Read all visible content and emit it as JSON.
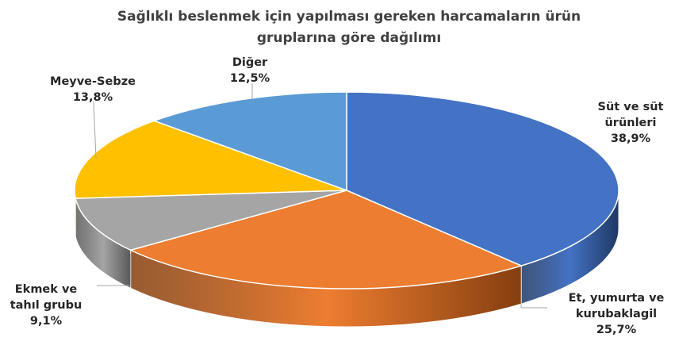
{
  "chart_data": {
    "type": "pie",
    "title_lines": [
      "Sağlıklı beslenmek için yapılması gereken harcamaların ürün",
      "gruplarına göre dağılımı"
    ],
    "slices": [
      {
        "label_lines": [
          "Süt ve süt",
          "ürünleri"
        ],
        "value": 38.9,
        "value_label": "38,9%",
        "color": "#4472C4",
        "side_color": "#1F3862"
      },
      {
        "label_lines": [
          "Et, yumurta ve",
          "kurubaklagil"
        ],
        "value": 25.7,
        "value_label": "25,7%",
        "color": "#ED7D31",
        "side_color": "#843F0F"
      },
      {
        "label_lines": [
          "Ekmek ve",
          "tahıl grubu"
        ],
        "value": 9.1,
        "value_label": "9,1%",
        "color": "#A5A5A5",
        "side_color": "#595959"
      },
      {
        "label_lines": [
          "Meyve-Sebze"
        ],
        "value": 13.8,
        "value_label": "13,8%",
        "color": "#FFC000",
        "side_color": "#8A6500"
      },
      {
        "label_lines": [
          "Diğer"
        ],
        "value": 12.5,
        "value_label": "12,5%",
        "color": "#5B9BD5",
        "side_color": "#2E5A83"
      }
    ],
    "start_angle_deg": -90,
    "style": "3d",
    "legend": "none"
  }
}
